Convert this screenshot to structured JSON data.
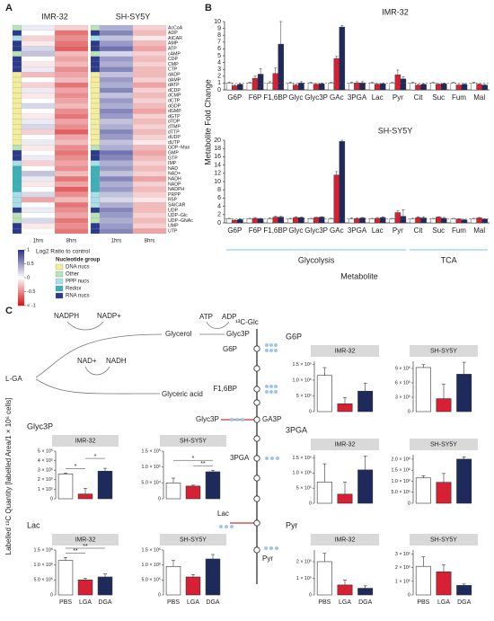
{
  "panels": {
    "a": "A",
    "b": "B",
    "c": "C"
  },
  "heatmap_legend": {
    "title": "Log2 Ratio to control",
    "colors": [
      "#d7191c",
      "#ffffff",
      "#33358f"
    ],
    "ticks": [
      1,
      0.5,
      0,
      -0.5,
      {
        "value": -1,
        "label": "< -1"
      }
    ]
  },
  "group_legend": {
    "title": "Nucleotide group",
    "groups": [
      {
        "name": "DNA nucs",
        "color": "#f3ee9b"
      },
      {
        "name": "Other",
        "color": "#b9e3b4"
      },
      {
        "name": "PPP nucs",
        "color": "#a8dfe8"
      },
      {
        "name": "Redox",
        "color": "#3bb0b8"
      },
      {
        "name": "RNA nucs",
        "color": "#2b3a8c"
      }
    ],
    "row_groups": [
      1,
      4,
      2,
      4,
      4,
      1,
      4,
      4,
      4,
      0,
      0,
      0,
      0,
      0,
      0,
      0,
      0,
      0,
      0,
      0,
      0,
      0,
      0,
      1,
      4,
      4,
      2,
      3,
      3,
      3,
      3,
      3,
      2,
      2,
      2,
      4,
      1,
      1,
      4,
      4
    ]
  },
  "panel_b": {
    "ylabel": "Metabolite Fold Change",
    "xlabel": "Metabolite"
  },
  "panel_c": {
    "ylabel": "Labelled ¹³C Quantity [labelled Area/1 × 10⁶ cells]"
  },
  "pathway": {
    "cofactors": [
      "NADPH",
      "NADP+",
      "ATP",
      "ADP",
      "NAD+",
      "NADH"
    ],
    "nodes": [
      "L-GA",
      "Glycerol",
      "Glyc3P",
      "Glyceric acid",
      "¹³C-Glc",
      "G6P",
      "F1,6BP",
      "Glyc3P",
      "GA3P",
      "3PGA",
      "Lac",
      "Pyr"
    ]
  },
  "chart_data": [
    {
      "type": "heatmap",
      "title": "IMR-32",
      "columns": [
        "1hrs",
        "8hrs"
      ],
      "values": [
        [
          0.1,
          -0.2
        ],
        [
          0.0,
          -0.6
        ],
        [
          -0.2,
          -0.5
        ],
        [
          -0.1,
          -0.6
        ],
        [
          0.2,
          -0.7
        ],
        [
          0.3,
          -0.3
        ],
        [
          0.0,
          -0.4
        ],
        [
          -0.1,
          -0.3
        ],
        [
          0.1,
          -0.5
        ],
        [
          -0.3,
          -0.4
        ],
        [
          0.0,
          -0.3
        ],
        [
          -0.2,
          -0.6
        ],
        [
          0.1,
          -0.4
        ],
        [
          -0.1,
          -0.5
        ],
        [
          0.0,
          -0.4
        ],
        [
          0.2,
          -0.3
        ],
        [
          0.0,
          -0.5
        ],
        [
          -0.1,
          -0.6
        ],
        [
          0.1,
          -0.4
        ],
        [
          0.2,
          -0.5
        ],
        [
          -0.2,
          -0.7
        ],
        [
          0.0,
          -0.4
        ],
        [
          0.1,
          -0.3
        ],
        [
          -0.1,
          -0.5
        ],
        [
          0.0,
          -0.6
        ],
        [
          0.1,
          -0.5
        ],
        [
          -0.2,
          -0.4
        ],
        [
          0.0,
          -0.5
        ],
        [
          0.3,
          -0.3
        ],
        [
          0.1,
          -0.6
        ],
        [
          -0.1,
          -0.4
        ],
        [
          0.0,
          -0.7
        ],
        [
          0.2,
          -0.5
        ],
        [
          -0.4,
          -0.3
        ],
        [
          0.0,
          -0.6
        ],
        [
          0.1,
          -0.5
        ],
        [
          0.0,
          -0.4
        ],
        [
          0.2,
          -0.6
        ],
        [
          -0.1,
          -0.5
        ],
        [
          0.0,
          -0.6
        ]
      ]
    },
    {
      "type": "heatmap",
      "title": "SH-SY5Y",
      "columns": [
        "1hrs",
        "8hrs"
      ],
      "rows": [
        "AcCoA",
        "ADP",
        "AICAR",
        "AMP",
        "ATP",
        "cAMP",
        "CDP",
        "CMP",
        "CTP",
        "dADP",
        "dAMP",
        "dATP",
        "dCDP",
        "dCMP",
        "dCTP",
        "dGDP",
        "dGMP",
        "dGTP",
        "dTDP",
        "dTMP",
        "dTTP",
        "dUDP",
        "dUTP",
        "GDP−Man",
        "GMP",
        "GTP",
        "IMP",
        "NAD",
        "NAD+",
        "NADH",
        "NADP",
        "NADPH",
        "PRPP",
        "R5P",
        "SAICAR",
        "UDP",
        "UDP−Glc",
        "UDP−GNAc",
        "UMP",
        "UTP"
      ],
      "values": [
        [
          0.4,
          -0.2
        ],
        [
          0.6,
          -0.3
        ],
        [
          0.3,
          -0.1
        ],
        [
          0.5,
          -0.3
        ],
        [
          0.7,
          -0.4
        ],
        [
          0.2,
          -0.2
        ],
        [
          0.5,
          -0.3
        ],
        [
          0.4,
          -0.2
        ],
        [
          0.6,
          -0.3
        ],
        [
          0.3,
          -0.3
        ],
        [
          0.5,
          -0.2
        ],
        [
          0.4,
          -0.4
        ],
        [
          0.6,
          -0.2
        ],
        [
          0.3,
          -0.3
        ],
        [
          0.5,
          -0.2
        ],
        [
          0.4,
          -0.3
        ],
        [
          0.6,
          -0.4
        ],
        [
          0.5,
          -0.2
        ],
        [
          0.3,
          -0.3
        ],
        [
          0.4,
          -0.2
        ],
        [
          0.6,
          -0.3
        ],
        [
          0.5,
          -0.2
        ],
        [
          0.3,
          -0.1
        ],
        [
          0.4,
          -0.3
        ],
        [
          0.7,
          -0.4
        ],
        [
          0.6,
          -0.3
        ],
        [
          0.4,
          -0.2
        ],
        [
          0.5,
          -0.3
        ],
        [
          0.3,
          -0.2
        ],
        [
          0.6,
          -0.4
        ],
        [
          0.4,
          -0.2
        ],
        [
          0.5,
          -0.3
        ],
        [
          0.3,
          -0.2
        ],
        [
          0.2,
          -0.1
        ],
        [
          0.4,
          -0.3
        ],
        [
          0.6,
          -0.3
        ],
        [
          0.5,
          -0.2
        ],
        [
          0.4,
          -0.3
        ],
        [
          0.5,
          -0.2
        ],
        [
          0.6,
          -0.4
        ]
      ]
    },
    {
      "type": "bar",
      "title": "IMR-32",
      "categories": [
        "G6P",
        "F6P",
        "F1,6BP",
        "Glyc",
        "Glyc3P",
        "GAc",
        "3PGA",
        "Lac",
        "Pyr",
        "Cit",
        "Suc",
        "Fum",
        "Mal"
      ],
      "ylim": [
        0,
        10
      ],
      "yticks": [
        0,
        1,
        2,
        3,
        4,
        5,
        6,
        7,
        8,
        9,
        10
      ],
      "hline": 1,
      "series": [
        {
          "color": "#ffffff",
          "values": [
            1,
            1,
            1,
            1,
            1,
            1,
            1,
            1,
            1,
            1,
            1,
            1,
            1
          ],
          "errors": [
            0.1,
            0.15,
            0.2,
            0.1,
            0.1,
            0.1,
            0.1,
            0.1,
            0.1,
            0.1,
            0.1,
            0.1,
            0.1
          ]
        },
        {
          "color": "#d62033",
          "values": [
            0.6,
            1.7,
            2.4,
            0.7,
            0.8,
            4.6,
            1.0,
            0.8,
            2.2,
            0.7,
            0.8,
            0.7,
            0.8
          ],
          "errors": [
            0.1,
            0.3,
            0.8,
            0.1,
            0.1,
            0.3,
            0.2,
            0.1,
            0.7,
            0.1,
            0.1,
            0.1,
            0.1
          ]
        },
        {
          "color": "#1f2a5c",
          "values": [
            0.8,
            2.3,
            6.7,
            1.0,
            0.9,
            9.2,
            1.0,
            0.9,
            1.6,
            0.8,
            0.9,
            0.8,
            0.7
          ],
          "errors": [
            0.1,
            0.8,
            3.3,
            0.2,
            0.1,
            0.2,
            0.2,
            0.1,
            0.3,
            0.1,
            0.1,
            0.1,
            0.1
          ]
        }
      ]
    },
    {
      "type": "bar",
      "title": "SH-SY5Y",
      "categories": [
        "G6P",
        "F6P",
        "F1,6BP",
        "Glyc",
        "Glyc3P",
        "GAc",
        "3PGA",
        "Lac",
        "Pyr",
        "Cit",
        "Suc",
        "Fum",
        "Mal"
      ],
      "ylim": [
        0,
        20
      ],
      "yticks": [
        0,
        2,
        4,
        6,
        8,
        10,
        12,
        14,
        16,
        18,
        20
      ],
      "hline": 1,
      "groups": [
        {
          "label": "Glycolysis",
          "from": 0,
          "to": 8
        },
        {
          "label": "TCA",
          "from": 9,
          "to": 12
        }
      ],
      "series": [
        {
          "color": "#ffffff",
          "values": [
            1,
            1,
            1,
            1,
            1,
            1,
            1,
            1,
            1,
            1,
            1,
            1,
            1
          ],
          "errors": [
            0.1,
            0.1,
            0.2,
            0.1,
            0.1,
            0.1,
            0.2,
            0.1,
            0.1,
            0.1,
            0.1,
            0.1,
            0.1
          ]
        },
        {
          "color": "#d62033",
          "values": [
            0.6,
            1.1,
            1.4,
            1.3,
            1.3,
            11.6,
            1.0,
            1.1,
            2.5,
            1.3,
            1.4,
            0.9,
            1.2
          ],
          "errors": [
            0.1,
            0.2,
            0.2,
            0.2,
            0.1,
            0.8,
            0.2,
            0.2,
            0.4,
            0.2,
            0.1,
            0.1,
            0.1
          ]
        },
        {
          "color": "#1f2a5c",
          "values": [
            0.8,
            1.0,
            1.4,
            1.3,
            1.4,
            19.7,
            1.2,
            1.3,
            1.6,
            1.2,
            1.1,
            0.7,
            0.9
          ],
          "errors": [
            0.1,
            0.1,
            0.2,
            0.1,
            0.1,
            0.3,
            0.1,
            0.2,
            1.6,
            0.3,
            0.2,
            0.1,
            0.1
          ]
        }
      ]
    },
    {
      "type": "smallbar",
      "title": "Glyc3P",
      "header": "IMR-32",
      "colors": [
        "#ffffff",
        "#d62033",
        "#1f2a5c"
      ],
      "ylim": [
        0,
        500000
      ],
      "yticks": [
        0,
        {
          "value": 100000,
          "label": "1 × 10⁵"
        },
        {
          "value": 200000,
          "label": "2 × 10⁵"
        },
        {
          "value": 300000,
          "label": "3 × 10⁵"
        },
        {
          "value": 400000,
          "label": "4 × 10⁵"
        },
        {
          "value": 500000,
          "label": "5 × 10⁵"
        }
      ],
      "values": [
        260000,
        50000,
        290000
      ],
      "errors": [
        10000,
        60000,
        30000
      ],
      "brackets": [
        {
          "label": "*",
          "between": [
            0,
            1
          ]
        },
        {
          "label": "*",
          "between": [
            1,
            2
          ]
        }
      ]
    },
    {
      "type": "smallbar",
      "header": "SH-SY5Y",
      "colors": [
        "#ffffff",
        "#d62033",
        "#1f2a5c"
      ],
      "ylim": [
        0,
        150000
      ],
      "yticks": [
        0,
        {
          "value": 50000,
          "label": "5.0 × 10⁴"
        },
        {
          "value": 100000,
          "label": "1.0 × 10⁵"
        },
        {
          "value": 150000,
          "label": "1.5 × 10⁵"
        }
      ],
      "values": [
        50000,
        40000,
        85000
      ],
      "errors": [
        15000,
        3000,
        5000
      ],
      "brackets": [
        {
          "label": "**",
          "between": [
            1,
            2
          ]
        },
        {
          "label": "*",
          "between": [
            0,
            2
          ]
        }
      ]
    },
    {
      "type": "smallbar",
      "title": "Lac",
      "header": "IMR-32",
      "categories": [
        "PBS",
        "LGA",
        "DGA"
      ],
      "colors": [
        "#ffffff",
        "#d62033",
        "#1f2a5c"
      ],
      "ylim": [
        0,
        1500000
      ],
      "yticks": [
        0,
        {
          "value": 500000,
          "label": "5.0 × 10⁵"
        },
        {
          "value": 1000000,
          "label": "1.0 × 10⁶"
        },
        {
          "value": 1500000,
          "label": "1.5 × 10⁶"
        }
      ],
      "values": [
        1150000,
        500000,
        600000
      ],
      "errors": [
        100000,
        50000,
        100000
      ],
      "brackets": [
        {
          "label": "**",
          "between": [
            0,
            1
          ]
        },
        {
          "label": "**",
          "between": [
            0,
            2
          ]
        }
      ]
    },
    {
      "type": "smallbar",
      "header": "SH-SY5Y",
      "categories": [
        "PBS",
        "LGA",
        "DGA"
      ],
      "colors": [
        "#ffffff",
        "#d62033",
        "#1f2a5c"
      ],
      "ylim": [
        0,
        1500000
      ],
      "yticks": [
        0,
        {
          "value": 500000,
          "label": "5.0 × 10⁵"
        },
        {
          "value": 1000000,
          "label": "1.0 × 10⁶"
        },
        {
          "value": 1500000,
          "label": "1.5 × 10⁶"
        }
      ],
      "values": [
        950000,
        600000,
        1200000
      ],
      "errors": [
        200000,
        80000,
        150000
      ]
    },
    {
      "type": "smallbar",
      "title": "G6P",
      "header": "IMR-32",
      "colors": [
        "#ffffff",
        "#d62033",
        "#1f2a5c"
      ],
      "ylim": [
        0,
        1600000
      ],
      "yticks": [
        0,
        {
          "value": 500000,
          "label": "5 × 10⁵"
        },
        {
          "value": 1000000,
          "label": "1.0 × 10⁶"
        },
        {
          "value": 1500000,
          "label": "1.5 × 10⁶"
        }
      ],
      "values": [
        1150000,
        250000,
        650000
      ],
      "errors": [
        250000,
        200000,
        250000
      ]
    },
    {
      "type": "smallbar",
      "header": "SH-SY5Y",
      "colors": [
        "#ffffff",
        "#d62033",
        "#1f2a5c"
      ],
      "ylim": [
        0,
        1050000
      ],
      "yticks": [
        0,
        {
          "value": 300000,
          "label": "3 × 10⁵"
        },
        {
          "value": 600000,
          "label": "6 × 10⁵"
        },
        {
          "value": 900000,
          "label": "9 × 10⁵"
        }
      ],
      "values": [
        920000,
        270000,
        780000
      ],
      "errors": [
        60000,
        300000,
        250000
      ]
    },
    {
      "type": "smallbar",
      "title": "3PGA",
      "header": "IMR-32",
      "colors": [
        "#ffffff",
        "#d62033",
        "#1f2a5c"
      ],
      "ylim": [
        0,
        1600000
      ],
      "yticks": [
        0,
        {
          "value": 500000,
          "label": "5 × 10⁵"
        },
        {
          "value": 1000000,
          "label": "1.0 × 10⁶"
        },
        {
          "value": 1500000,
          "label": "1.5 × 10⁶"
        }
      ],
      "values": [
        700000,
        300000,
        1100000
      ],
      "errors": [
        600000,
        400000,
        450000
      ]
    },
    {
      "type": "smallbar",
      "header": "SH-SY5Y",
      "colors": [
        "#ffffff",
        "#d62033",
        "#1f2a5c"
      ],
      "ylim": [
        0,
        2200000
      ],
      "yticks": [
        0,
        {
          "value": 500000,
          "label": "5.0 × 10⁵"
        },
        {
          "value": 1000000,
          "label": "1.0 × 10⁶"
        },
        {
          "value": 1500000,
          "label": "1.5 × 10⁶"
        },
        {
          "value": 2000000,
          "label": "2.0 × 10⁶"
        }
      ],
      "values": [
        1150000,
        950000,
        2000000
      ],
      "errors": [
        100000,
        400000,
        100000
      ]
    },
    {
      "type": "smallbar",
      "title": "Pyr",
      "header": "IMR-32",
      "categories": [
        "PBS",
        "LGA",
        "DGA"
      ],
      "colors": [
        "#ffffff",
        "#d62033",
        "#1f2a5c"
      ],
      "ylim": [
        0,
        270000
      ],
      "yticks": [
        0,
        {
          "value": 100000,
          "label": "1 × 10⁵"
        },
        {
          "value": 200000,
          "label": "2 × 10⁵"
        }
      ],
      "values": [
        200000,
        60000,
        40000
      ],
      "errors": [
        50000,
        30000,
        15000
      ]
    },
    {
      "type": "smallbar",
      "header": "SH-SY5Y",
      "categories": [
        "PBS",
        "LGA",
        "DGA"
      ],
      "colors": [
        "#ffffff",
        "#d62033",
        "#1f2a5c"
      ],
      "ylim": [
        0,
        330000
      ],
      "yticks": [
        0,
        {
          "value": 100000,
          "label": "1 × 10⁵"
        },
        {
          "value": 200000,
          "label": "2 × 10⁵"
        },
        {
          "value": 300000,
          "label": "3 × 10⁵"
        }
      ],
      "values": [
        210000,
        170000,
        70000
      ],
      "errors": [
        70000,
        50000,
        10000
      ]
    }
  ]
}
